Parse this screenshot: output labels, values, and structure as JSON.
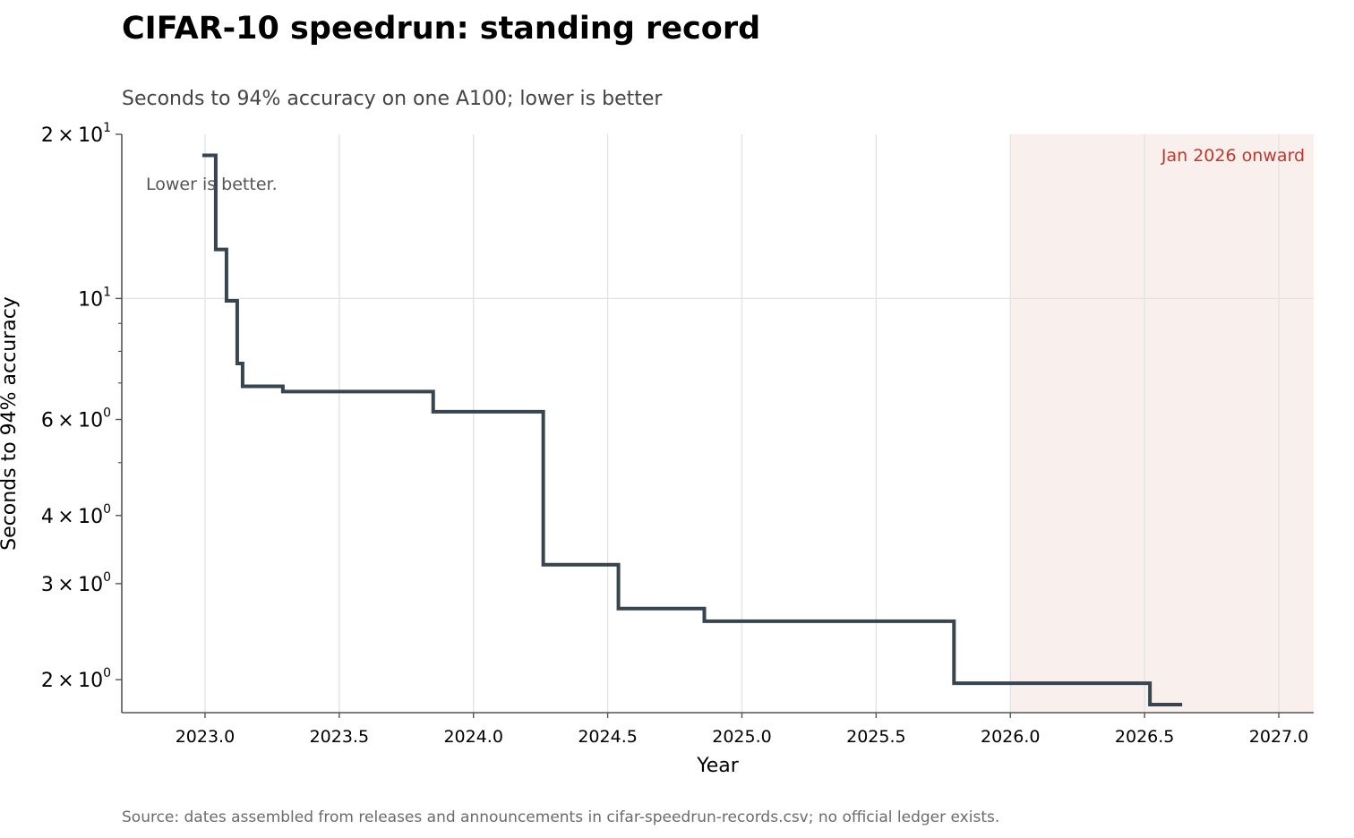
{
  "chart_data": {
    "type": "line",
    "title": "CIFAR-10 speedrun: standing record",
    "subtitle": "Seconds to 94% accuracy on one A100; lower is better",
    "xlabel": "Year",
    "ylabel": "Seconds to 94% accuracy",
    "source_note": "Source: dates assembled from releases and announcements in cifar-speedrun-records.csv; no official ledger exists.",
    "annotation": "Lower is better.",
    "highlight_region": {
      "from": 2026.0,
      "to": 2027.13,
      "label": "Jan 2026 onward",
      "color": "#f9efec",
      "label_color": "#c0392b"
    },
    "x_scale": "linear",
    "y_scale": "log",
    "xlim": [
      2022.69,
      2027.13
    ],
    "ylim": [
      1.74,
      20.0
    ],
    "grid": true,
    "x_ticks": [
      2023.0,
      2023.5,
      2024.0,
      2024.5,
      2025.0,
      2025.5,
      2026.0,
      2026.5,
      2027.0
    ],
    "x_tick_labels": [
      "2023.0",
      "2023.5",
      "2024.0",
      "2024.5",
      "2025.0",
      "2025.5",
      "2026.0",
      "2026.5",
      "2027.0"
    ],
    "y_major_ticks": [
      {
        "value": 20,
        "mant": "2",
        "exp": "1"
      },
      {
        "value": 10,
        "mant": "",
        "exp": "1"
      },
      {
        "value": 6,
        "mant": "6",
        "exp": "0"
      },
      {
        "value": 4,
        "mant": "4",
        "exp": "0"
      },
      {
        "value": 3,
        "mant": "3",
        "exp": "0"
      },
      {
        "value": 2,
        "mant": "2",
        "exp": "0"
      }
    ],
    "y_minor_ticks": [
      9,
      8,
      7,
      5
    ],
    "line_color": "#36454f",
    "series": [
      {
        "step": "post",
        "x": [
          2022.99,
          2023.04,
          2023.08,
          2023.12,
          2023.14,
          2023.29,
          2023.85,
          2024.26,
          2024.54,
          2024.86,
          2025.79,
          2026.52,
          2026.64
        ],
        "y": [
          18.3,
          12.3,
          9.9,
          7.6,
          6.9,
          6.75,
          6.2,
          3.25,
          2.7,
          2.56,
          1.97,
          1.8,
          1.8
        ]
      }
    ]
  }
}
